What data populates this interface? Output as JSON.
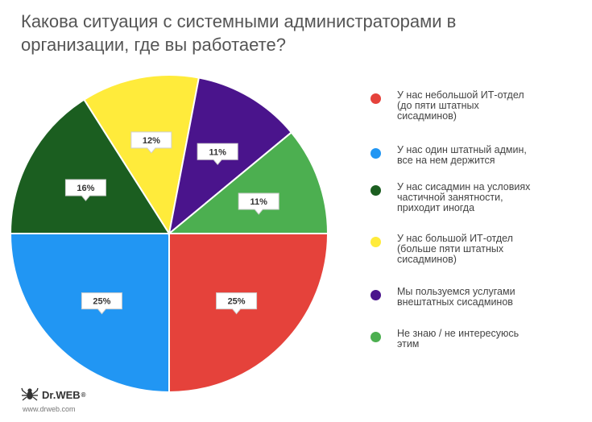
{
  "title_lines": [
    "Какова ситуация с системными администраторами в",
    "организации, где вы работаете?"
  ],
  "chart_data": {
    "type": "pie",
    "title": "Какова ситуация с системными администраторами в организации, где вы работаете?",
    "slices": [
      {
        "label_lines": [
          "У нас небольшой ИТ-отдел",
          "(до пяти штатных",
          "сисадминов)"
        ],
        "value": 25,
        "display": "25%",
        "color": "#e5423b"
      },
      {
        "label_lines": [
          "У нас один штатный админ,",
          "все на нем держится"
        ],
        "value": 25,
        "display": "25%",
        "color": "#2196f3"
      },
      {
        "label_lines": [
          "У нас сисадмин на условиях",
          "частичной занятности,",
          "приходит иногда"
        ],
        "value": 16,
        "display": "16%",
        "color": "#1b5e20"
      },
      {
        "label_lines": [
          "У нас большой ИТ-отдел",
          "(больше пяти штатных",
          "сисадминов)"
        ],
        "value": 12,
        "display": "12%",
        "color": "#ffeb3b"
      },
      {
        "label_lines": [
          "Мы пользуемся услугами",
          "внештатных сисадминов"
        ],
        "value": 11,
        "display": "11%",
        "color": "#4a148c"
      },
      {
        "label_lines": [
          "Не знаю / не интересуюсь",
          "этим"
        ],
        "value": 11,
        "display": "11%",
        "color": "#4caf50"
      }
    ]
  },
  "logo": {
    "brand": "Dr.WEB",
    "url": "www.drweb.com"
  },
  "icons": {
    "logo": "spider-icon"
  }
}
